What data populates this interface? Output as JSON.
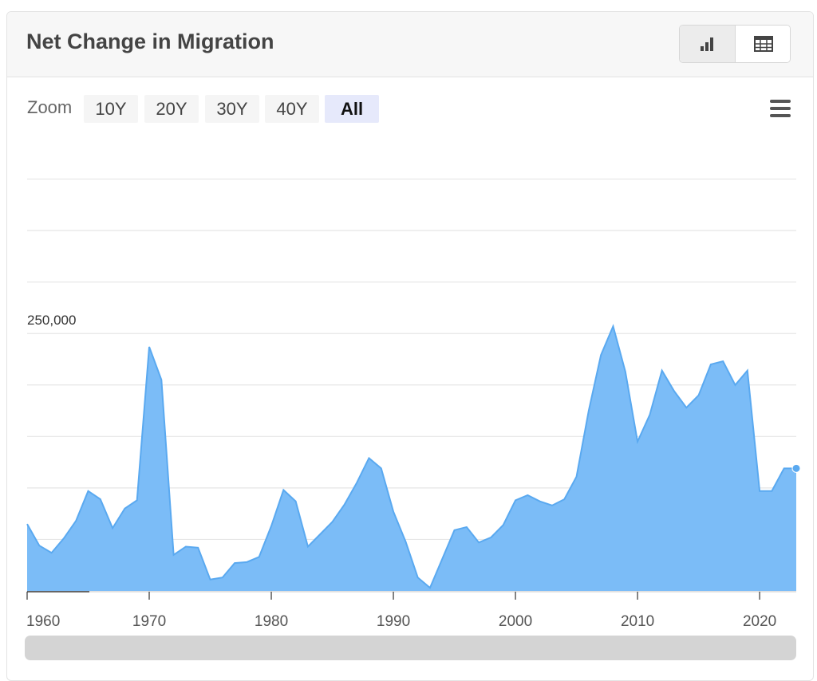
{
  "header": {
    "title": "Net Change in Migration",
    "chart_view_icon": "bar-chart-icon",
    "table_view_icon": "table-icon"
  },
  "zoom": {
    "label": "Zoom",
    "options": [
      "10Y",
      "20Y",
      "30Y",
      "40Y",
      "All"
    ],
    "active": "All"
  },
  "menu_icon": "hamburger-menu-icon",
  "colors": {
    "area_fill": "#7bbcf7",
    "area_line": "#5aa9f0",
    "grid": "#e6e6e6",
    "navigator": "#d4d4d4"
  },
  "chart_data": {
    "type": "area",
    "title": "Net Change in Migration",
    "xlabel": "",
    "ylabel": "",
    "x_ticks": [
      1960,
      1970,
      1980,
      1990,
      2000,
      2010,
      2020
    ],
    "y_tick_labels": [
      {
        "value": 250000,
        "label": "250,000"
      }
    ],
    "ylim": [
      0,
      450000
    ],
    "xlim": [
      1960,
      2023
    ],
    "grid": true,
    "legend": "none",
    "x": [
      1960,
      1961,
      1962,
      1963,
      1964,
      1965,
      1966,
      1967,
      1968,
      1969,
      1970,
      1971,
      1972,
      1973,
      1974,
      1975,
      1976,
      1977,
      1978,
      1979,
      1980,
      1981,
      1982,
      1983,
      1984,
      1985,
      1986,
      1987,
      1988,
      1989,
      1990,
      1991,
      1992,
      1993,
      1994,
      1995,
      1996,
      1997,
      1998,
      1999,
      2000,
      2001,
      2002,
      2003,
      2004,
      2005,
      2006,
      2007,
      2008,
      2009,
      2010,
      2011,
      2012,
      2013,
      2014,
      2015,
      2016,
      2017,
      2018,
      2019,
      2020,
      2021,
      2022,
      2023
    ],
    "values": [
      65000,
      44000,
      37000,
      51000,
      68000,
      97000,
      89000,
      61000,
      80000,
      88000,
      237000,
      205000,
      35000,
      43000,
      42000,
      11000,
      13000,
      27000,
      28000,
      33000,
      63000,
      98000,
      87000,
      43000,
      55000,
      67000,
      84000,
      105000,
      129000,
      119000,
      77000,
      48000,
      13000,
      3000,
      31000,
      59000,
      62000,
      47000,
      52000,
      64000,
      88000,
      93000,
      87000,
      83000,
      89000,
      111000,
      175000,
      229000,
      257000,
      213000,
      145000,
      171000,
      214000,
      194000,
      178000,
      190000,
      220000,
      223000,
      200000,
      214000,
      97000,
      97000,
      119000,
      119000
    ]
  }
}
